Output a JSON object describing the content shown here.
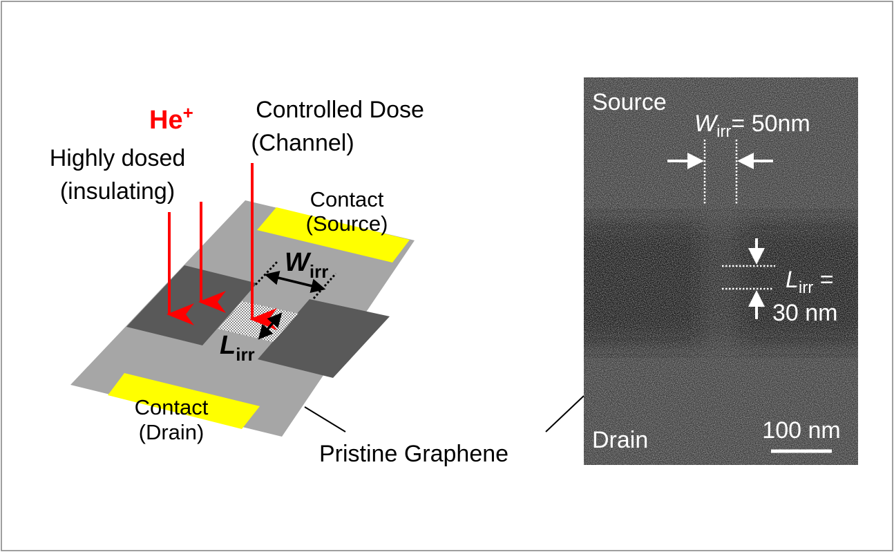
{
  "diagram": {
    "ion_label": "He",
    "ion_charge": "+",
    "highly_dosed_line1": "Highly dosed",
    "highly_dosed_line2": "(insulating)",
    "controlled_dose_line1": "Controlled Dose",
    "controlled_dose_line2": "(Channel)",
    "contact_source_line1": "Contact",
    "contact_source_line2": "(Source)",
    "contact_drain_line1": "Contact",
    "contact_drain_line2": "(Drain)",
    "w_symbol": "W",
    "w_sub": "irr",
    "l_symbol": "L",
    "l_sub": "irr",
    "pristine_label": "Pristine Graphene"
  },
  "micrograph": {
    "source_label": "Source",
    "drain_label": "Drain",
    "w_symbol": "W",
    "w_sub": "irr",
    "w_value": "= 50nm",
    "l_symbol": "L",
    "l_sub": "irr",
    "l_eq": " =",
    "l_value": "30 nm",
    "scale_bar_label": "100 nm"
  },
  "colors": {
    "ion_arrow": "#ff0000",
    "contact": "#ffff00",
    "graphene": "#a6a6a6",
    "insulating": "#595959"
  }
}
